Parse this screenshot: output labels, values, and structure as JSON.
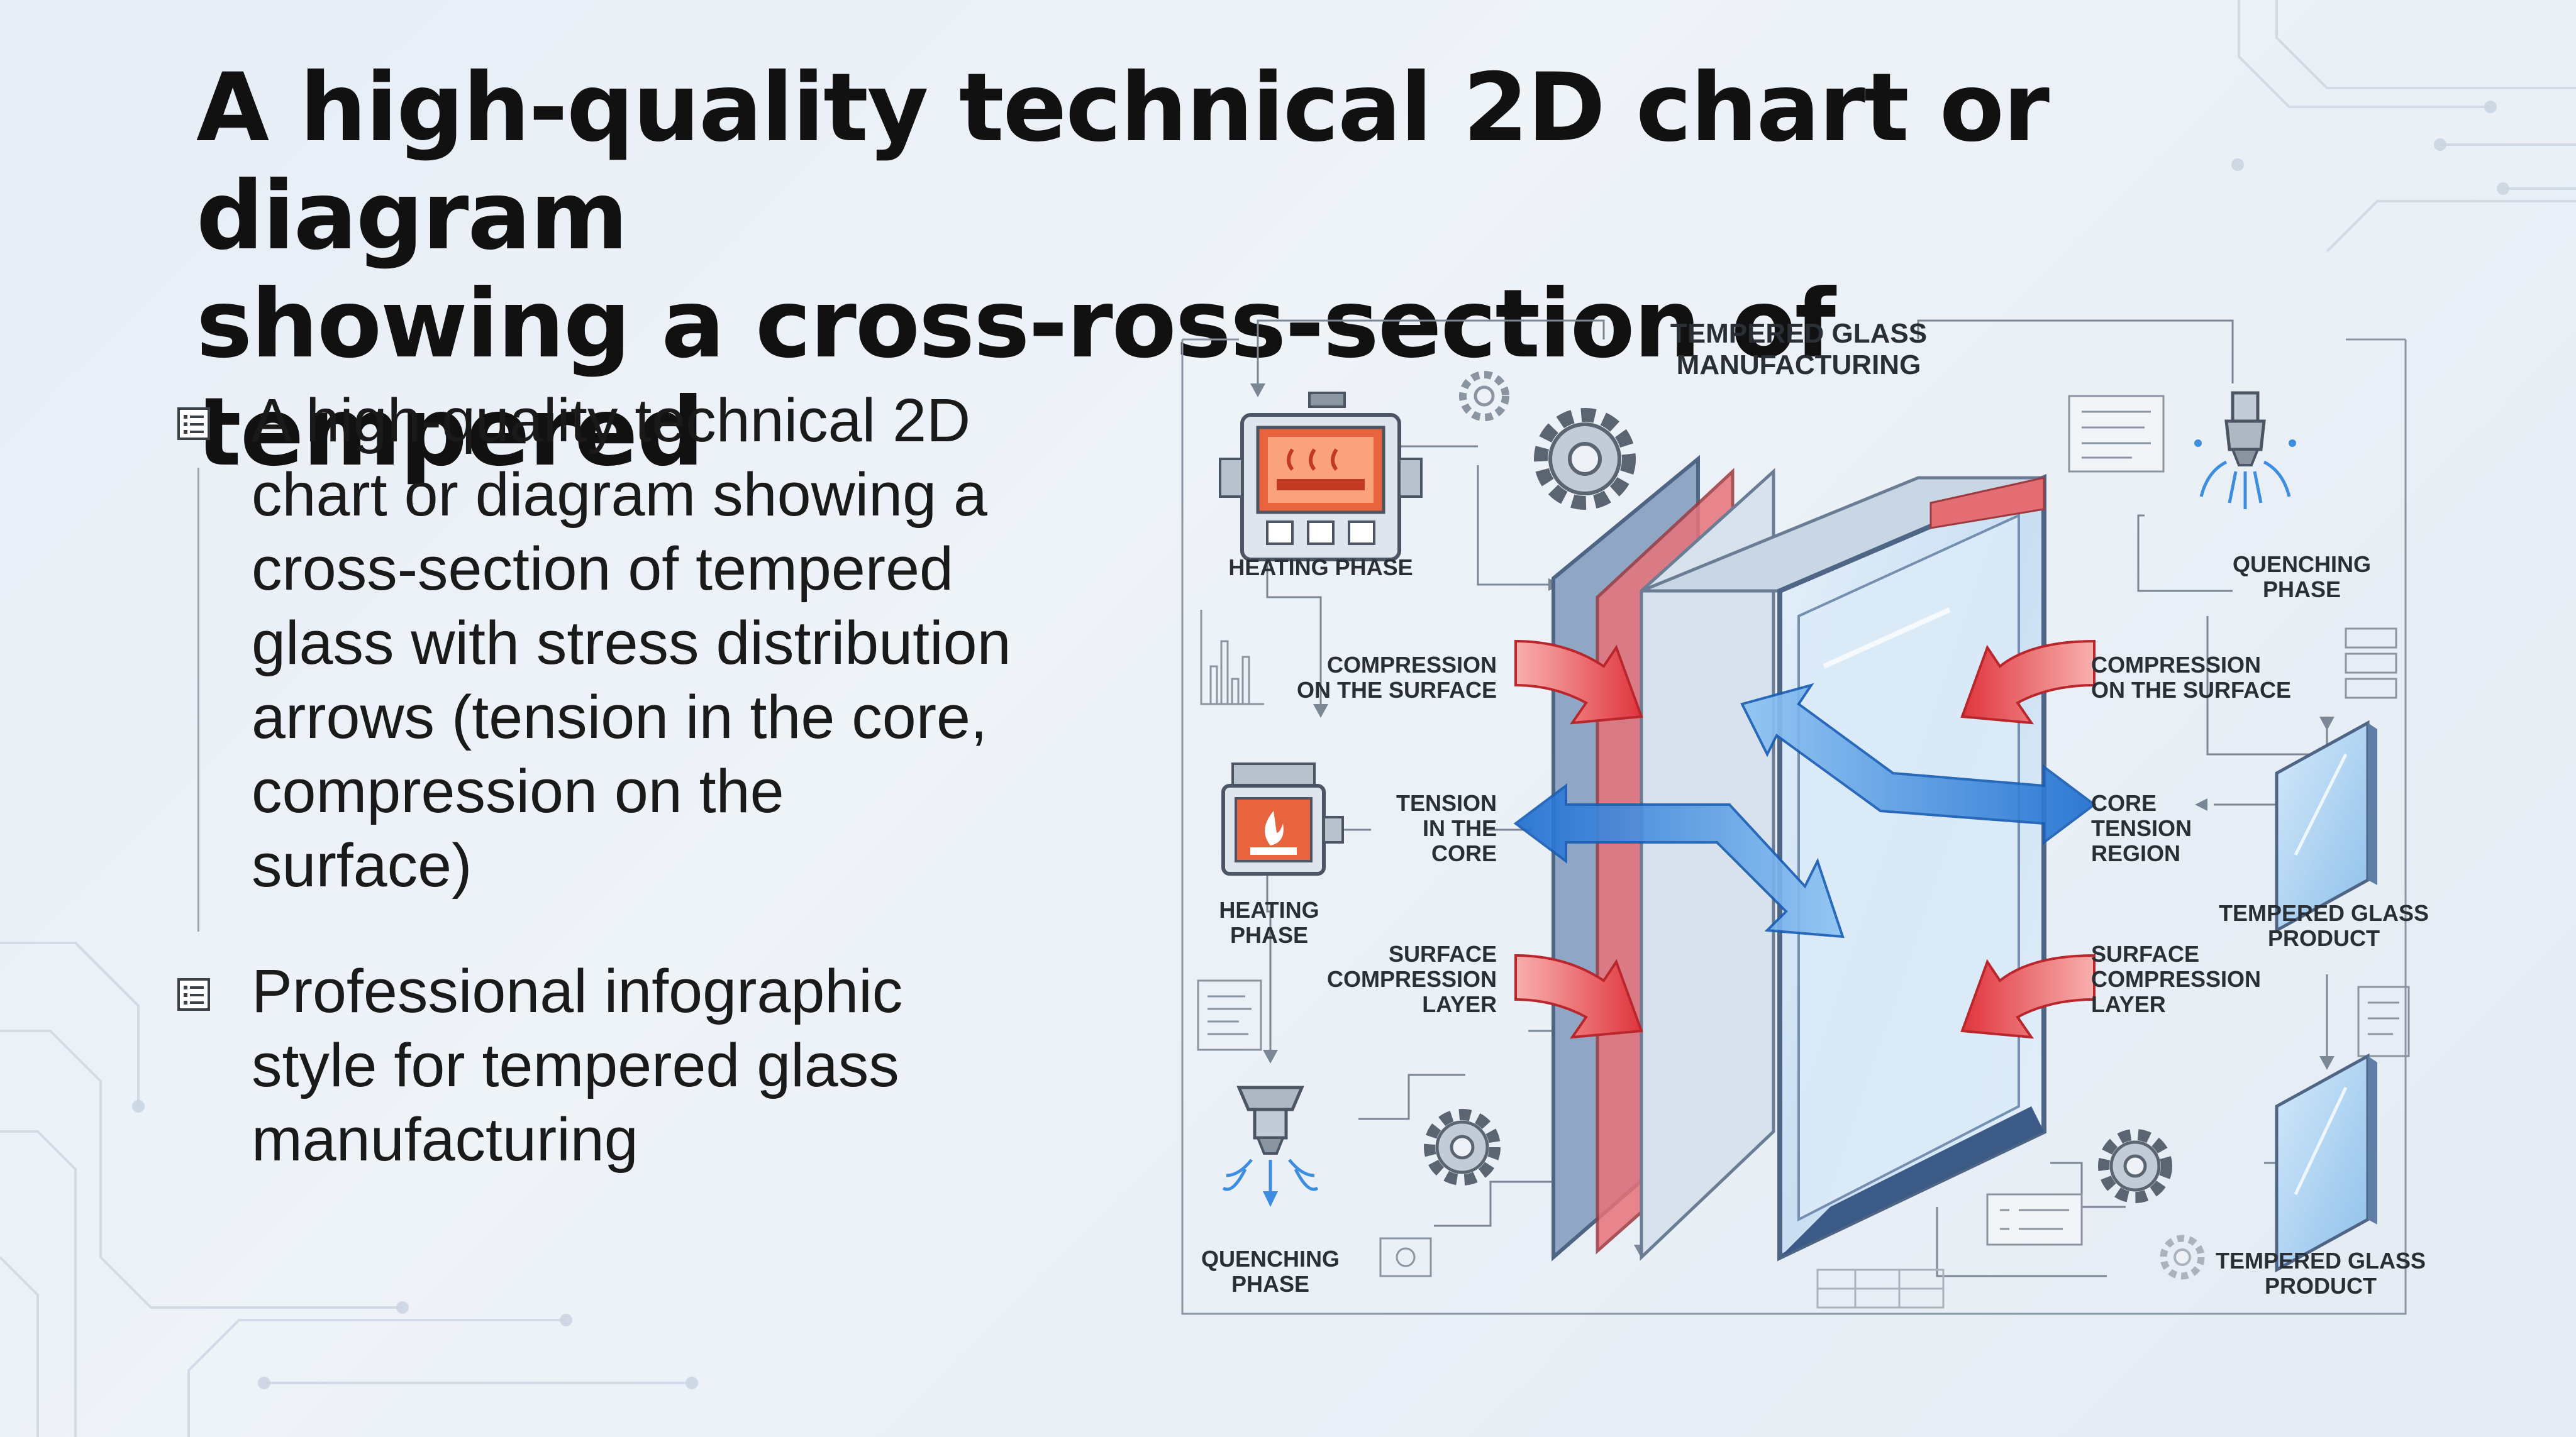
{
  "title": {
    "line1": "A high-quality technical 2D chart or diagram",
    "line2": "showing a cross-ross-section of tempered"
  },
  "bullets": [
    {
      "icon": "document-list-icon",
      "lines": [
        "A high-quality technical 2D",
        "chart or diagram showing a",
        "cross-section of tempered",
        "glass with stress distribution",
        "arrows (tension in the core,",
        "compression on the",
        "surface)"
      ]
    },
    {
      "icon": "document-list-icon",
      "lines": [
        "Professional infographic",
        "style for tempered glass",
        "manufacturing"
      ]
    }
  ],
  "diagram": {
    "header": [
      "TEMPERED GLASS",
      "MANUFACTURING"
    ],
    "left": {
      "heating_1": "HEATING PHASE",
      "heating_2": [
        "HEATING",
        "PHASE"
      ],
      "quenching": [
        "QUENCHING",
        "PHASE"
      ],
      "compression": [
        "COMPRESSION",
        "ON THE SURFACE"
      ],
      "tension": [
        "TENSION",
        "IN THE",
        "CORE"
      ],
      "surface_layer": [
        "SURFACE",
        "COMPRESSION",
        "LAYER"
      ]
    },
    "right": {
      "quenching": [
        "QUENCHING",
        "PHASE"
      ],
      "compression": [
        "COMPRESSION",
        "ON THE SURFACE"
      ],
      "core_tension": [
        "CORE",
        "TENSION",
        "REGION"
      ],
      "surface_layer": [
        "SURFACE",
        "COMPRESSION",
        "LAYER"
      ],
      "product_1": [
        "TEMPERED GLASS",
        "PRODUCT"
      ],
      "product_2": [
        "TEMPERED GLASS",
        "PRODUCT"
      ]
    },
    "colors": {
      "compression_arrow": "#e2434a",
      "tension_arrow": "#3d8ee0",
      "glass_frame": "#5f7ea6",
      "heater_body": "#e8643e",
      "line": "#7b8794"
    }
  }
}
